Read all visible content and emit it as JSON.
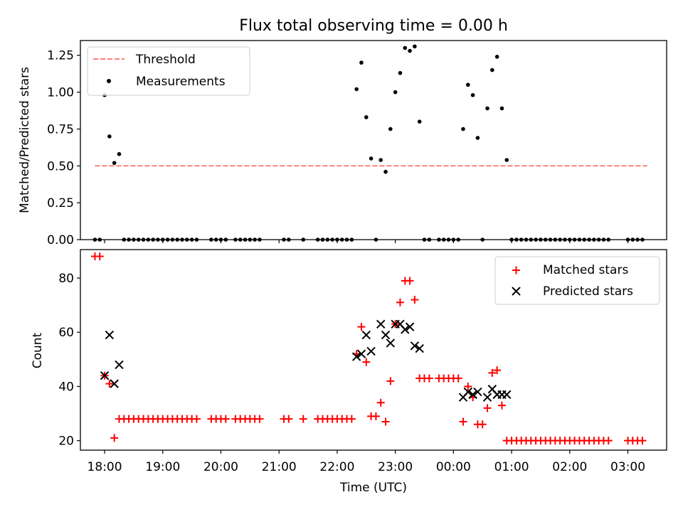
{
  "title": "Flux total observing time = 0.00 h",
  "colors": {
    "threshold": "#ff7f7f",
    "measurements": "#000000",
    "matched": "#ff0000",
    "predicted": "#000000"
  },
  "chart_data": [
    {
      "type": "scatter",
      "title": "Flux total observing time = 0.00 h",
      "xlabel": "",
      "ylabel": "Matched/Predicted stars",
      "xlim": [
        "17:35",
        "03:40"
      ],
      "ylim": [
        0,
        1.35
      ],
      "yticks": [
        "0.00",
        "0.25",
        "0.50",
        "0.75",
        "1.00",
        "1.25"
      ],
      "legend": {
        "position": "top-left",
        "entries": [
          "Threshold",
          "Measurements"
        ]
      },
      "threshold": {
        "name": "Threshold",
        "value": 0.5,
        "x": [
          "17:50",
          "03:20"
        ]
      },
      "series": [
        {
          "name": "Measurements",
          "points": [
            [
              "17:50",
              0
            ],
            [
              "17:55",
              0
            ],
            [
              "18:00",
              0.98
            ],
            [
              "18:05",
              0.7
            ],
            [
              "18:10",
              0.52
            ],
            [
              "18:15",
              0.58
            ],
            [
              "18:20",
              0
            ],
            [
              "18:25",
              0
            ],
            [
              "18:30",
              0
            ],
            [
              "18:35",
              0
            ],
            [
              "18:40",
              0
            ],
            [
              "18:45",
              0
            ],
            [
              "18:50",
              0
            ],
            [
              "18:55",
              0
            ],
            [
              "19:00",
              0
            ],
            [
              "19:05",
              0
            ],
            [
              "19:10",
              0
            ],
            [
              "19:15",
              0
            ],
            [
              "19:20",
              0
            ],
            [
              "19:25",
              0
            ],
            [
              "19:30",
              0
            ],
            [
              "19:35",
              0
            ],
            [
              "19:50",
              0
            ],
            [
              "19:55",
              0
            ],
            [
              "20:00",
              0
            ],
            [
              "20:05",
              0
            ],
            [
              "20:15",
              0
            ],
            [
              "20:20",
              0
            ],
            [
              "20:25",
              0
            ],
            [
              "20:30",
              0
            ],
            [
              "20:35",
              0
            ],
            [
              "20:40",
              0
            ],
            [
              "21:05",
              0
            ],
            [
              "21:10",
              0
            ],
            [
              "21:25",
              0
            ],
            [
              "21:40",
              0
            ],
            [
              "21:45",
              0
            ],
            [
              "21:50",
              0
            ],
            [
              "21:55",
              0
            ],
            [
              "22:00",
              0
            ],
            [
              "22:05",
              0
            ],
            [
              "22:10",
              0
            ],
            [
              "22:15",
              0
            ],
            [
              "22:20",
              1.02
            ],
            [
              "22:25",
              1.2
            ],
            [
              "22:30",
              0.83
            ],
            [
              "22:35",
              0.55
            ],
            [
              "22:40",
              0
            ],
            [
              "22:45",
              0.54
            ],
            [
              "22:50",
              0.46
            ],
            [
              "22:55",
              0.75
            ],
            [
              "23:00",
              1.0
            ],
            [
              "23:05",
              1.13
            ],
            [
              "23:10",
              1.3
            ],
            [
              "23:15",
              1.28
            ],
            [
              "23:20",
              1.31
            ],
            [
              "23:25",
              0.8
            ],
            [
              "23:30",
              0
            ],
            [
              "23:35",
              0
            ],
            [
              "23:45",
              0
            ],
            [
              "23:50",
              0
            ],
            [
              "23:55",
              0
            ],
            [
              "00:00",
              0
            ],
            [
              "00:05",
              0
            ],
            [
              "00:10",
              0.75
            ],
            [
              "00:15",
              1.05
            ],
            [
              "00:20",
              0.98
            ],
            [
              "00:25",
              0.69
            ],
            [
              "00:30",
              0
            ],
            [
              "00:35",
              0.89
            ],
            [
              "00:40",
              1.15
            ],
            [
              "00:45",
              1.24
            ],
            [
              "00:50",
              0.89
            ],
            [
              "00:55",
              0.54
            ],
            [
              "01:00",
              0
            ],
            [
              "01:05",
              0
            ],
            [
              "01:10",
              0
            ],
            [
              "01:15",
              0
            ],
            [
              "01:20",
              0
            ],
            [
              "01:25",
              0
            ],
            [
              "01:30",
              0
            ],
            [
              "01:35",
              0
            ],
            [
              "01:40",
              0
            ],
            [
              "01:45",
              0
            ],
            [
              "01:50",
              0
            ],
            [
              "01:55",
              0
            ],
            [
              "02:00",
              0
            ],
            [
              "02:05",
              0
            ],
            [
              "02:10",
              0
            ],
            [
              "02:15",
              0
            ],
            [
              "02:20",
              0
            ],
            [
              "02:25",
              0
            ],
            [
              "02:30",
              0
            ],
            [
              "02:35",
              0
            ],
            [
              "02:40",
              0
            ],
            [
              "03:00",
              0
            ],
            [
              "03:05",
              0
            ],
            [
              "03:10",
              0
            ],
            [
              "03:15",
              0
            ]
          ]
        }
      ]
    },
    {
      "type": "scatter",
      "xlabel": "Time (UTC)",
      "ylabel": "Count",
      "xlim": [
        "17:35",
        "03:40"
      ],
      "ylim": [
        16.5,
        90.5
      ],
      "yticks": [
        "20",
        "40",
        "60",
        "80"
      ],
      "xticks": [
        "18:00",
        "19:00",
        "20:00",
        "21:00",
        "22:00",
        "23:00",
        "00:00",
        "01:00",
        "02:00",
        "03:00"
      ],
      "legend": {
        "position": "top-right",
        "entries": [
          "Matched stars",
          "Predicted stars"
        ]
      },
      "series": [
        {
          "name": "Matched stars",
          "marker": "plus",
          "points": [
            [
              "17:50",
              88
            ],
            [
              "17:55",
              88
            ],
            [
              "18:00",
              44
            ],
            [
              "18:05",
              41
            ],
            [
              "18:10",
              21
            ],
            [
              "18:15",
              28
            ],
            [
              "18:20",
              28
            ],
            [
              "18:25",
              28
            ],
            [
              "18:30",
              28
            ],
            [
              "18:35",
              28
            ],
            [
              "18:40",
              28
            ],
            [
              "18:45",
              28
            ],
            [
              "18:50",
              28
            ],
            [
              "18:55",
              28
            ],
            [
              "19:00",
              28
            ],
            [
              "19:05",
              28
            ],
            [
              "19:10",
              28
            ],
            [
              "19:15",
              28
            ],
            [
              "19:20",
              28
            ],
            [
              "19:25",
              28
            ],
            [
              "19:30",
              28
            ],
            [
              "19:35",
              28
            ],
            [
              "19:50",
              28
            ],
            [
              "19:55",
              28
            ],
            [
              "20:00",
              28
            ],
            [
              "20:05",
              28
            ],
            [
              "20:15",
              28
            ],
            [
              "20:20",
              28
            ],
            [
              "20:25",
              28
            ],
            [
              "20:30",
              28
            ],
            [
              "20:35",
              28
            ],
            [
              "20:40",
              28
            ],
            [
              "21:05",
              28
            ],
            [
              "21:10",
              28
            ],
            [
              "21:25",
              28
            ],
            [
              "21:40",
              28
            ],
            [
              "21:45",
              28
            ],
            [
              "21:50",
              28
            ],
            [
              "21:55",
              28
            ],
            [
              "22:00",
              28
            ],
            [
              "22:05",
              28
            ],
            [
              "22:10",
              28
            ],
            [
              "22:15",
              28
            ],
            [
              "22:20",
              52
            ],
            [
              "22:25",
              62
            ],
            [
              "22:30",
              49
            ],
            [
              "22:35",
              29
            ],
            [
              "22:40",
              29
            ],
            [
              "22:45",
              34
            ],
            [
              "22:50",
              27
            ],
            [
              "22:55",
              42
            ],
            [
              "23:00",
              63
            ],
            [
              "23:05",
              71
            ],
            [
              "23:10",
              79
            ],
            [
              "23:15",
              79
            ],
            [
              "23:20",
              72
            ],
            [
              "23:25",
              43
            ],
            [
              "23:30",
              43
            ],
            [
              "23:35",
              43
            ],
            [
              "23:45",
              43
            ],
            [
              "23:50",
              43
            ],
            [
              "23:55",
              43
            ],
            [
              "00:00",
              43
            ],
            [
              "00:05",
              43
            ],
            [
              "00:10",
              27
            ],
            [
              "00:15",
              40
            ],
            [
              "00:20",
              36
            ],
            [
              "00:25",
              26
            ],
            [
              "00:30",
              26
            ],
            [
              "00:35",
              32
            ],
            [
              "00:40",
              45
            ],
            [
              "00:45",
              46
            ],
            [
              "00:50",
              33
            ],
            [
              "00:55",
              20
            ],
            [
              "01:00",
              20
            ],
            [
              "01:05",
              20
            ],
            [
              "01:10",
              20
            ],
            [
              "01:15",
              20
            ],
            [
              "01:20",
              20
            ],
            [
              "01:25",
              20
            ],
            [
              "01:30",
              20
            ],
            [
              "01:35",
              20
            ],
            [
              "01:40",
              20
            ],
            [
              "01:45",
              20
            ],
            [
              "01:50",
              20
            ],
            [
              "01:55",
              20
            ],
            [
              "02:00",
              20
            ],
            [
              "02:05",
              20
            ],
            [
              "02:10",
              20
            ],
            [
              "02:15",
              20
            ],
            [
              "02:20",
              20
            ],
            [
              "02:25",
              20
            ],
            [
              "02:30",
              20
            ],
            [
              "02:35",
              20
            ],
            [
              "02:40",
              20
            ],
            [
              "03:00",
              20
            ],
            [
              "03:05",
              20
            ],
            [
              "03:10",
              20
            ],
            [
              "03:15",
              20
            ]
          ]
        },
        {
          "name": "Predicted stars",
          "marker": "x",
          "points": [
            [
              "18:00",
              44
            ],
            [
              "18:05",
              59
            ],
            [
              "18:10",
              41
            ],
            [
              "18:15",
              48
            ],
            [
              "22:20",
              51
            ],
            [
              "22:25",
              52
            ],
            [
              "22:30",
              59
            ],
            [
              "22:35",
              53
            ],
            [
              "22:45",
              63
            ],
            [
              "22:50",
              59
            ],
            [
              "22:55",
              56
            ],
            [
              "23:00",
              63
            ],
            [
              "23:05",
              63
            ],
            [
              "23:10",
              61
            ],
            [
              "23:15",
              62
            ],
            [
              "23:20",
              55
            ],
            [
              "23:25",
              54
            ],
            [
              "00:10",
              36
            ],
            [
              "00:15",
              38
            ],
            [
              "00:20",
              37
            ],
            [
              "00:25",
              38
            ],
            [
              "00:35",
              36
            ],
            [
              "00:40",
              39
            ],
            [
              "00:45",
              37
            ],
            [
              "00:50",
              37
            ],
            [
              "00:55",
              37
            ]
          ]
        }
      ]
    }
  ]
}
